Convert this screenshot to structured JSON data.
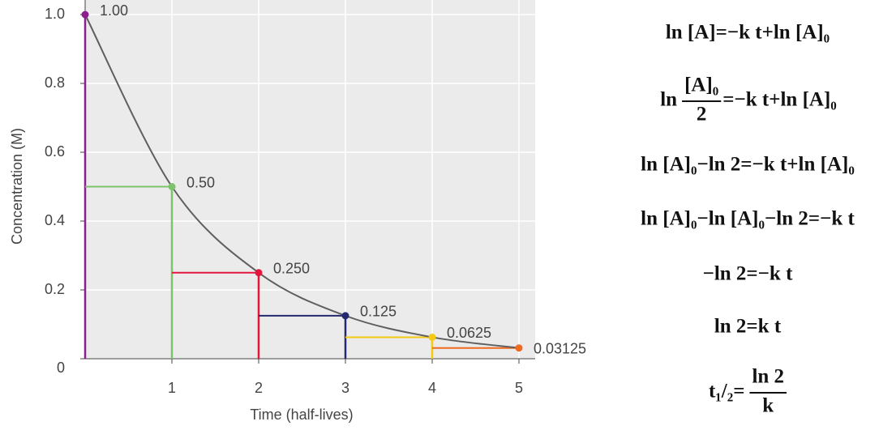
{
  "chart_data": {
    "type": "line",
    "x_label": "Time (half-lives)",
    "y_label": "Concentration (M)",
    "x": [
      0,
      1,
      2,
      3,
      4,
      5
    ],
    "values": [
      1,
      0.5,
      0.25,
      0.125,
      0.0625,
      0.03125
    ],
    "value_labels": [
      "1.00",
      "0.50",
      "0.250",
      "0.125",
      "0.0625",
      "0.03125"
    ],
    "color": "#5f5f5f",
    "point_colors": [
      "#8b1f8e",
      "#7cc36b",
      "#e3173e",
      "#24296f",
      "#f6c913",
      "#ef6b22"
    ],
    "xlim": [
      0,
      5
    ],
    "xticks": [
      1,
      2,
      3,
      4,
      5
    ],
    "ylim": [
      0,
      1
    ],
    "yticks": [
      0,
      0.2,
      0.4,
      0.6,
      0.8,
      {
        "value": 1,
        "label": "1.0"
      }
    ],
    "grid": true
  },
  "equations": [
    {
      "text": "ln [A]=−k t+ln [A]₀"
    },
    {
      "lead": "ln",
      "numerator": "[A]₀",
      "denominator": "2",
      "rest": "=−k t+ln [A]₀"
    },
    {
      "text": "ln [A]₀−ln 2=−k t+ln [A]₀"
    },
    {
      "text": "ln [A]₀−ln [A]₀−ln 2=−k t"
    },
    {
      "text": "−ln 2=−k t"
    },
    {
      "text": "ln 2=k t"
    },
    {
      "lead": "t₁/₂=",
      "numerator": "ln 2",
      "denominator": "k"
    }
  ]
}
